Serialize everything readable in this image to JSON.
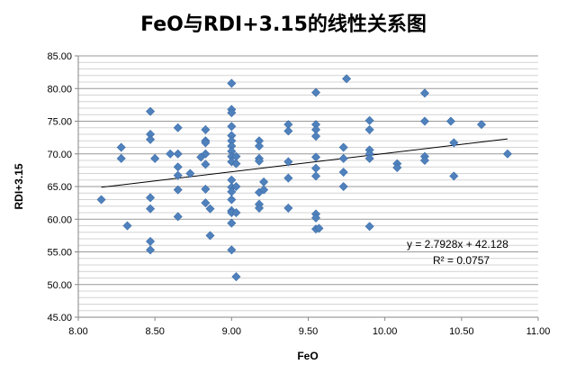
{
  "chart_data": {
    "type": "scatter",
    "title": "FeO与RDI+3.15的线性关系图",
    "xlabel": "FeO",
    "ylabel": "RDI+3.15",
    "xlim": [
      8.0,
      11.0
    ],
    "ylim": [
      45.0,
      85.0
    ],
    "xticks": [
      "8.00",
      "8.50",
      "9.00",
      "9.50",
      "10.00",
      "10.50",
      "11.00"
    ],
    "yticks": [
      "45.00",
      "50.00",
      "55.00",
      "60.00",
      "65.00",
      "70.00",
      "75.00",
      "80.00",
      "85.00"
    ],
    "grid": "horizontal",
    "legend": "none",
    "marker_color": "#4F81BD",
    "trendline": {
      "slope": 2.7928,
      "intercept": 42.128,
      "x_range": [
        8.15,
        10.8
      ],
      "color": "#000000"
    },
    "equation_text": "y = 2.7928x  + 42.128",
    "r2_text": "R² = 0.0757",
    "points": [
      [
        8.15,
        63.0
      ],
      [
        8.28,
        71.0
      ],
      [
        8.28,
        69.3
      ],
      [
        8.32,
        59.0
      ],
      [
        8.47,
        76.5
      ],
      [
        8.47,
        73.0
      ],
      [
        8.47,
        72.2
      ],
      [
        8.47,
        63.3
      ],
      [
        8.47,
        61.6
      ],
      [
        8.47,
        56.6
      ],
      [
        8.47,
        55.3
      ],
      [
        8.5,
        69.3
      ],
      [
        8.6,
        70.0
      ],
      [
        8.65,
        74.0
      ],
      [
        8.65,
        70.0
      ],
      [
        8.65,
        68.0
      ],
      [
        8.65,
        66.7
      ],
      [
        8.65,
        64.5
      ],
      [
        8.65,
        60.4
      ],
      [
        8.73,
        67.0
      ],
      [
        8.8,
        69.5
      ],
      [
        8.83,
        73.7
      ],
      [
        8.83,
        72.0
      ],
      [
        8.83,
        71.7
      ],
      [
        8.83,
        70.0
      ],
      [
        8.83,
        68.4
      ],
      [
        8.83,
        64.6
      ],
      [
        8.83,
        62.5
      ],
      [
        8.86,
        61.6
      ],
      [
        8.86,
        57.5
      ],
      [
        9.0,
        80.8
      ],
      [
        9.0,
        76.8
      ],
      [
        9.0,
        76.3
      ],
      [
        9.0,
        74.2
      ],
      [
        9.0,
        72.8
      ],
      [
        9.0,
        72.0
      ],
      [
        9.0,
        71.2
      ],
      [
        9.0,
        70.4
      ],
      [
        9.0,
        69.6
      ],
      [
        9.0,
        68.8
      ],
      [
        9.0,
        66.0
      ],
      [
        9.0,
        64.9
      ],
      [
        9.0,
        64.2
      ],
      [
        9.0,
        63.0
      ],
      [
        9.0,
        61.3
      ],
      [
        9.0,
        61.0
      ],
      [
        9.0,
        59.4
      ],
      [
        9.0,
        55.3
      ],
      [
        9.03,
        69.6
      ],
      [
        9.03,
        68.5
      ],
      [
        9.03,
        65.0
      ],
      [
        9.03,
        61.0
      ],
      [
        9.03,
        51.2
      ],
      [
        9.18,
        72.0
      ],
      [
        9.18,
        71.2
      ],
      [
        9.18,
        69.3
      ],
      [
        9.18,
        68.9
      ],
      [
        9.18,
        64.1
      ],
      [
        9.18,
        62.3
      ],
      [
        9.18,
        61.7
      ],
      [
        9.21,
        65.7
      ],
      [
        9.21,
        64.5
      ],
      [
        9.37,
        74.5
      ],
      [
        9.37,
        73.5
      ],
      [
        9.37,
        68.8
      ],
      [
        9.37,
        66.3
      ],
      [
        9.37,
        61.7
      ],
      [
        9.55,
        79.4
      ],
      [
        9.55,
        74.5
      ],
      [
        9.55,
        73.7
      ],
      [
        9.55,
        72.7
      ],
      [
        9.55,
        69.5
      ],
      [
        9.55,
        67.8
      ],
      [
        9.55,
        66.6
      ],
      [
        9.55,
        60.8
      ],
      [
        9.55,
        60.2
      ],
      [
        9.55,
        58.5
      ],
      [
        9.57,
        58.6
      ],
      [
        9.73,
        71.0
      ],
      [
        9.73,
        69.3
      ],
      [
        9.73,
        67.2
      ],
      [
        9.73,
        65.0
      ],
      [
        9.75,
        81.5
      ],
      [
        9.9,
        75.1
      ],
      [
        9.9,
        73.7
      ],
      [
        9.9,
        70.6
      ],
      [
        9.9,
        70.0
      ],
      [
        9.9,
        69.3
      ],
      [
        9.9,
        58.9
      ],
      [
        10.08,
        68.5
      ],
      [
        10.08,
        67.9
      ],
      [
        10.26,
        79.3
      ],
      [
        10.26,
        75.0
      ],
      [
        10.26,
        69.6
      ],
      [
        10.26,
        69.0
      ],
      [
        10.43,
        75.0
      ],
      [
        10.45,
        71.7
      ],
      [
        10.45,
        66.6
      ],
      [
        10.63,
        74.5
      ],
      [
        10.8,
        70.0
      ]
    ]
  }
}
